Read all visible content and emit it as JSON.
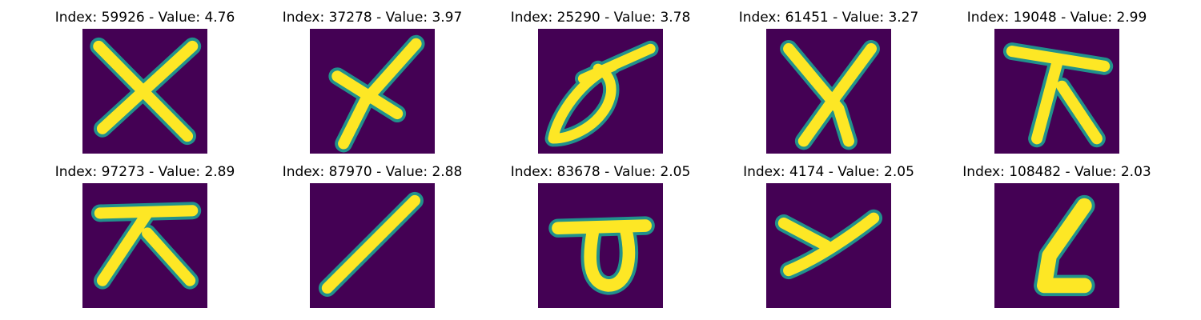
{
  "colors": {
    "background": "#440154",
    "edge": "#21918c",
    "glyph": "#fde725"
  },
  "tiles": [
    {
      "title": "Index: 59926 - Value: 4.76",
      "glyph": "x-cross"
    },
    {
      "title": "Index: 37278 - Value: 3.97",
      "glyph": "x-cross-slanted"
    },
    {
      "title": "Index: 25290 - Value: 3.78",
      "glyph": "loop-with-stroke"
    },
    {
      "title": "Index: 61451 - Value: 3.27",
      "glyph": "x-cross"
    },
    {
      "title": "Index: 19048 - Value: 2.99",
      "glyph": "bar-over-lambda"
    },
    {
      "title": "Index: 97273 - Value: 2.89",
      "glyph": "bar-over-lambda"
    },
    {
      "title": "Index: 87970 - Value: 2.88",
      "glyph": "diagonal-slash"
    },
    {
      "title": "Index: 83678 - Value: 2.05",
      "glyph": "bar-over-loop"
    },
    {
      "title": "Index: 4174 - Value: 2.05",
      "glyph": "y-shape"
    },
    {
      "title": "Index: 108482 - Value: 2.03",
      "glyph": "l-shape"
    }
  ]
}
